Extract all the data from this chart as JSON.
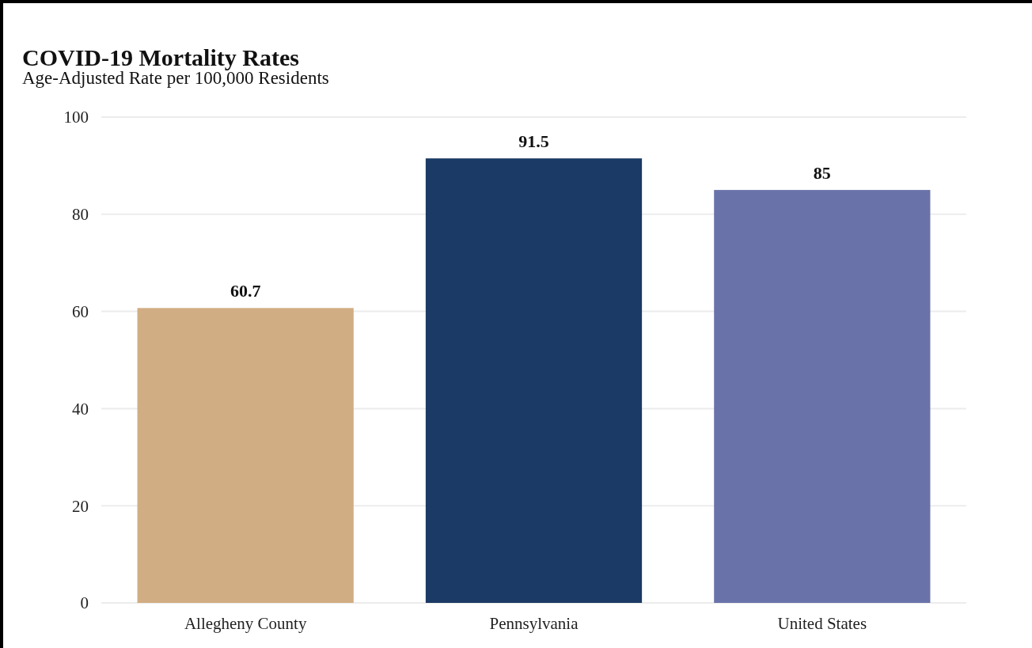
{
  "chart_data": {
    "type": "bar",
    "title": "COVID-19 Mortality Rates",
    "subtitle": "Age-Adjusted Rate per 100,000 Residents",
    "categories": [
      "Allegheny County",
      "Pennsylvania",
      "United States"
    ],
    "values": [
      60.7,
      91.5,
      85
    ],
    "colors": [
      "#d1ad83",
      "#1b3a65",
      "#6a73a9"
    ],
    "ylim": [
      0,
      100
    ],
    "yticks": [
      0,
      20,
      40,
      60,
      80,
      100
    ],
    "grid": "y",
    "data_labels": true
  }
}
